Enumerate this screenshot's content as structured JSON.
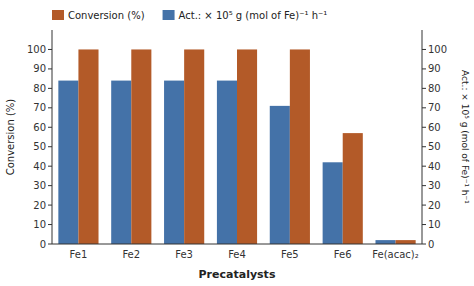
{
  "chart_data": {
    "type": "bar",
    "categories": [
      "Fe1",
      "Fe2",
      "Fe3",
      "Fe4",
      "Fe5",
      "Fe6",
      "Fe(acac)₂"
    ],
    "series": [
      {
        "name": "Act.: × 10⁵ g (mol of Fe)⁻¹ h⁻¹",
        "color": "#4472a8",
        "values": [
          84,
          84,
          84,
          84,
          71,
          42,
          2
        ]
      },
      {
        "name": "Conversion (%)",
        "color": "#b35a28",
        "values": [
          100,
          100,
          100,
          100,
          100,
          57,
          2
        ]
      }
    ],
    "xlabel": "Precatalysts",
    "ylabel": "Conversion (%)",
    "y2label": "Act.: × 10⁵ g (mol of Fe)⁻¹ h⁻¹",
    "ylim": [
      0,
      110
    ],
    "yticks": [
      0,
      10,
      20,
      30,
      40,
      50,
      60,
      70,
      80,
      90,
      100
    ],
    "y2lim": [
      0,
      110
    ],
    "y2ticks": [
      0,
      10,
      20,
      30,
      40,
      50,
      60,
      70,
      80,
      90,
      100
    ],
    "legend": "top"
  }
}
